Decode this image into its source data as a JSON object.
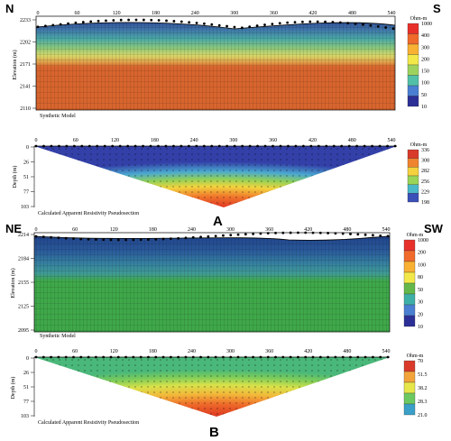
{
  "corners": {
    "a_left": "N",
    "a_right": "S",
    "b_left": "NE",
    "b_right": "SW"
  },
  "panel_labels": {
    "a": "A",
    "b": "B"
  },
  "distance_ticks": [
    "0",
    "60",
    "120",
    "180",
    "240",
    "300",
    "360",
    "420",
    "480",
    "540"
  ],
  "model_a": {
    "ylabel": "Elevation (m)",
    "yticks": [
      "2233",
      "2202",
      "2171",
      "2141",
      "2110"
    ],
    "caption": "Synthetic Model",
    "legend_title": "Ohm-m",
    "legend_values": [
      "1000",
      "400",
      "300",
      "200",
      "150",
      "100",
      "50",
      "10"
    ],
    "legend_colors": [
      "#e8302a",
      "#f06a2c",
      "#f8b133",
      "#f2e84a",
      "#9ed25e",
      "#52c0a8",
      "#4a7fd1",
      "#2b2f96"
    ]
  },
  "pseudo_a": {
    "ylabel": "Depth (m)",
    "yticks": [
      "0",
      "26",
      "51",
      "77",
      "103"
    ],
    "caption": "Calculated Apparent Resistivity Pseudosection",
    "legend_title": "Ohm-m",
    "legend_values": [
      "336",
      "308",
      "282",
      "256",
      "229",
      "198"
    ],
    "legend_colors": [
      "#d93a2a",
      "#f0832e",
      "#f5d13e",
      "#9ad458",
      "#4ab8c8",
      "#3a4fb8"
    ]
  },
  "model_b": {
    "ylabel": "Elevation (m)",
    "yticks": [
      "2214",
      "2184",
      "2155",
      "2125",
      "2095"
    ],
    "caption": "Synthetic Model",
    "legend_title": "Ohm-m",
    "legend_values": [
      "1000",
      "200",
      "100",
      "80",
      "50",
      "30",
      "20",
      "10"
    ],
    "legend_colors": [
      "#e8302a",
      "#f06a2c",
      "#f8b133",
      "#f2e84a",
      "#64b84a",
      "#3fb0a8",
      "#4a7fd1",
      "#2b2f96"
    ]
  },
  "pseudo_b": {
    "ylabel": "Depth (m)",
    "yticks": [
      "0",
      "26",
      "51",
      "77",
      "103"
    ],
    "caption": "Calculated Apparent Resistivity Pseudosection",
    "legend_title": "Ohm-m",
    "legend_values": [
      "70",
      "51.5",
      "38.2",
      "28.3",
      "21.0"
    ],
    "legend_colors": [
      "#d93a2a",
      "#f2a33a",
      "#e6e64a",
      "#6cc860",
      "#3aa0c8"
    ]
  },
  "colors": {
    "a_top": "#2a3f8e",
    "a_band2": "#4aa8a8",
    "a_band3": "#c8d86a",
    "a_body": "#d8652e",
    "b_top": "#2a5a9a",
    "b_band2": "#3f9a96",
    "b_body": "#3fa84a"
  }
}
